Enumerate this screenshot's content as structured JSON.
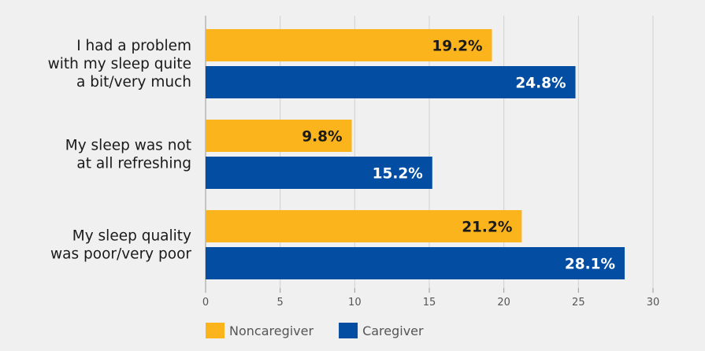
{
  "chart_data": {
    "type": "bar",
    "orientation": "horizontal",
    "title": "",
    "xlabel": "",
    "ylabel": "",
    "categories": [
      [
        "I had a problem",
        "with my sleep quite",
        "a bit/very much"
      ],
      [
        "My sleep was not",
        "at all refreshing"
      ],
      [
        "My sleep quality",
        "was poor/very poor"
      ]
    ],
    "series": [
      {
        "name": "Noncaregiver",
        "color": "#fbb41b",
        "label_color": "#1a1a1a",
        "values": [
          19.2,
          9.8,
          21.2
        ],
        "labels": [
          "19.2%",
          "9.8%",
          "21.2%"
        ]
      },
      {
        "name": "Caregiver",
        "color": "#034ea2",
        "label_color": "#ffffff",
        "values": [
          24.8,
          15.2,
          28.1
        ],
        "labels": [
          "24.8%",
          "15.2%",
          "28.1%"
        ]
      }
    ],
    "xlim": [
      0,
      30
    ],
    "xticks": [
      0,
      5,
      10,
      15,
      20,
      25,
      30
    ],
    "grid": "vertical",
    "legend_position": "bottom-left",
    "background": "#f0f0f0",
    "grid_color": "#d0d0d0"
  }
}
